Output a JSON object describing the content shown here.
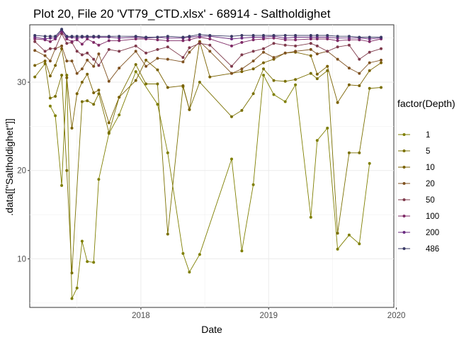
{
  "chart_data": {
    "type": "line",
    "title": "Plot 20, File 20 'VT79_CTD.xlsx' - 68914  -  Saltholdighet",
    "xlabel": "Date",
    "ylabel": ".data[[\"Saltholdighet\"]]",
    "xlim": [
      2017.13,
      2019.98
    ],
    "ylim": [
      4.5,
      36.5
    ],
    "x_ticks": [
      2018,
      2019,
      2020
    ],
    "x_tick_labels": [
      "2018",
      "2019",
      "2020"
    ],
    "y_ticks": [
      10,
      20,
      30
    ],
    "y_tick_labels": [
      "10",
      "20",
      "30"
    ],
    "grid": true,
    "legend": {
      "title": "factor(Depth)",
      "position": "right"
    },
    "x": [
      2017.17,
      2017.25,
      2017.29,
      2017.33,
      2017.38,
      2017.42,
      2017.46,
      2017.5,
      2017.54,
      2017.58,
      2017.63,
      2017.67,
      2017.75,
      2017.83,
      2017.96,
      2018.04,
      2018.13,
      2018.21,
      2018.33,
      2018.38,
      2018.46,
      2018.54,
      2018.71,
      2018.79,
      2018.88,
      2018.96,
      2019.04,
      2019.13,
      2019.21,
      2019.33,
      2019.38,
      2019.46,
      2019.54,
      2019.63,
      2019.71,
      2019.79,
      2019.88
    ],
    "series": [
      {
        "name": "1",
        "color": "#7f7f00",
        "values": [
          null,
          null,
          27.3,
          26.2,
          18.3,
          30.8,
          5.5,
          6.7,
          12.0,
          9.7,
          9.6,
          19.0,
          24.2,
          26.3,
          31.2,
          null,
          27.5,
          22.0,
          10.6,
          8.5,
          10.5,
          null,
          21.3,
          10.9,
          18.4,
          30.8,
          28.6,
          27.8,
          29.7,
          14.7,
          23.4,
          24.8,
          11.1,
          12.7,
          11.7,
          20.8,
          null
        ]
      },
      {
        "name": "5",
        "color": "#7a7000",
        "values": [
          30.6,
          32.1,
          28.2,
          28.4,
          30.8,
          20.0,
          8.4,
          null,
          27.8,
          27.9,
          27.5,
          28.7,
          24.3,
          28.3,
          32.0,
          29.8,
          29.8,
          12.8,
          29.5,
          26.9,
          30.0,
          null,
          26.1,
          26.8,
          28.7,
          31.5,
          30.2,
          30.1,
          30.3,
          31.0,
          30.4,
          31.3,
          12.9,
          22.0,
          22.0,
          29.3,
          29.4
        ]
      },
      {
        "name": "10",
        "color": "#7a6200",
        "values": [
          31.9,
          32.4,
          30.7,
          31.9,
          33.8,
          30.5,
          24.8,
          28.7,
          30.0,
          30.9,
          28.8,
          29.1,
          25.4,
          28.3,
          30.2,
          32.5,
          31.4,
          29.4,
          29.6,
          26.9,
          34.6,
          30.6,
          31.0,
          31.2,
          31.5,
          32.2,
          32.6,
          33.3,
          33.4,
          33.0,
          30.9,
          31.8,
          27.7,
          29.7,
          29.6,
          31.3,
          32.2
        ]
      },
      {
        "name": "20",
        "color": "#7f5220",
        "values": [
          33.6,
          33.0,
          32.4,
          33.8,
          34.1,
          32.4,
          32.4,
          31.0,
          31.5,
          32.5,
          31.8,
          33.2,
          30.1,
          31.6,
          33.5,
          31.8,
          32.7,
          32.6,
          32.3,
          33.4,
          34.6,
          33.5,
          31.0,
          31.5,
          32.4,
          33.4,
          32.8,
          33.3,
          33.5,
          33.7,
          33.2,
          33.5,
          32.6,
          31.6,
          31.0,
          32.2,
          32.5
        ]
      },
      {
        "name": "50",
        "color": "#7f3a4c",
        "values": [
          34.6,
          33.5,
          33.8,
          33.8,
          35.5,
          34.4,
          34.5,
          33.5,
          33.1,
          33.3,
          32.6,
          31.9,
          33.7,
          33.5,
          34.1,
          33.3,
          33.7,
          34.0,
          32.8,
          33.9,
          34.4,
          34.2,
          31.8,
          33.1,
          33.5,
          33.8,
          34.4,
          34.2,
          34.1,
          34.4,
          34.1,
          33.5,
          34.0,
          34.2,
          32.6,
          33.4,
          33.8
        ]
      },
      {
        "name": "100",
        "color": "#7f2a66",
        "values": [
          34.9,
          34.8,
          34.6,
          34.9,
          35.7,
          34.9,
          34.6,
          34.8,
          34.3,
          34.9,
          34.5,
          34.2,
          34.7,
          34.7,
          34.9,
          34.9,
          34.8,
          34.7,
          34.7,
          34.8,
          35.1,
          34.9,
          34.1,
          34.5,
          34.8,
          34.9,
          35.0,
          34.8,
          34.8,
          34.9,
          34.9,
          34.9,
          34.7,
          34.8,
          34.8,
          34.6,
          34.9
        ]
      },
      {
        "name": "200",
        "color": "#6a2a7f",
        "values": [
          35.1,
          34.9,
          35.0,
          35.0,
          35.9,
          35.1,
          35.1,
          35.0,
          35.1,
          35.1,
          35.1,
          35.1,
          35.1,
          35.0,
          35.1,
          35.0,
          35.1,
          35.0,
          35.0,
          35.1,
          35.2,
          35.2,
          34.9,
          35.0,
          35.1,
          35.1,
          35.2,
          35.0,
          35.1,
          35.1,
          35.1,
          35.1,
          35.0,
          35.0,
          35.0,
          34.9,
          35.0
        ]
      },
      {
        "name": "486",
        "color": "#3a3a66",
        "values": [
          35.3,
          35.2,
          35.2,
          35.2,
          36.0,
          35.2,
          35.2,
          35.2,
          35.2,
          35.2,
          35.2,
          35.2,
          35.2,
          35.2,
          35.2,
          35.1,
          35.1,
          35.2,
          35.1,
          35.2,
          35.4,
          35.3,
          35.2,
          35.3,
          35.3,
          35.3,
          35.3,
          35.3,
          35.3,
          35.3,
          35.3,
          35.3,
          35.2,
          35.2,
          35.1,
          35.1,
          35.1
        ]
      }
    ]
  }
}
